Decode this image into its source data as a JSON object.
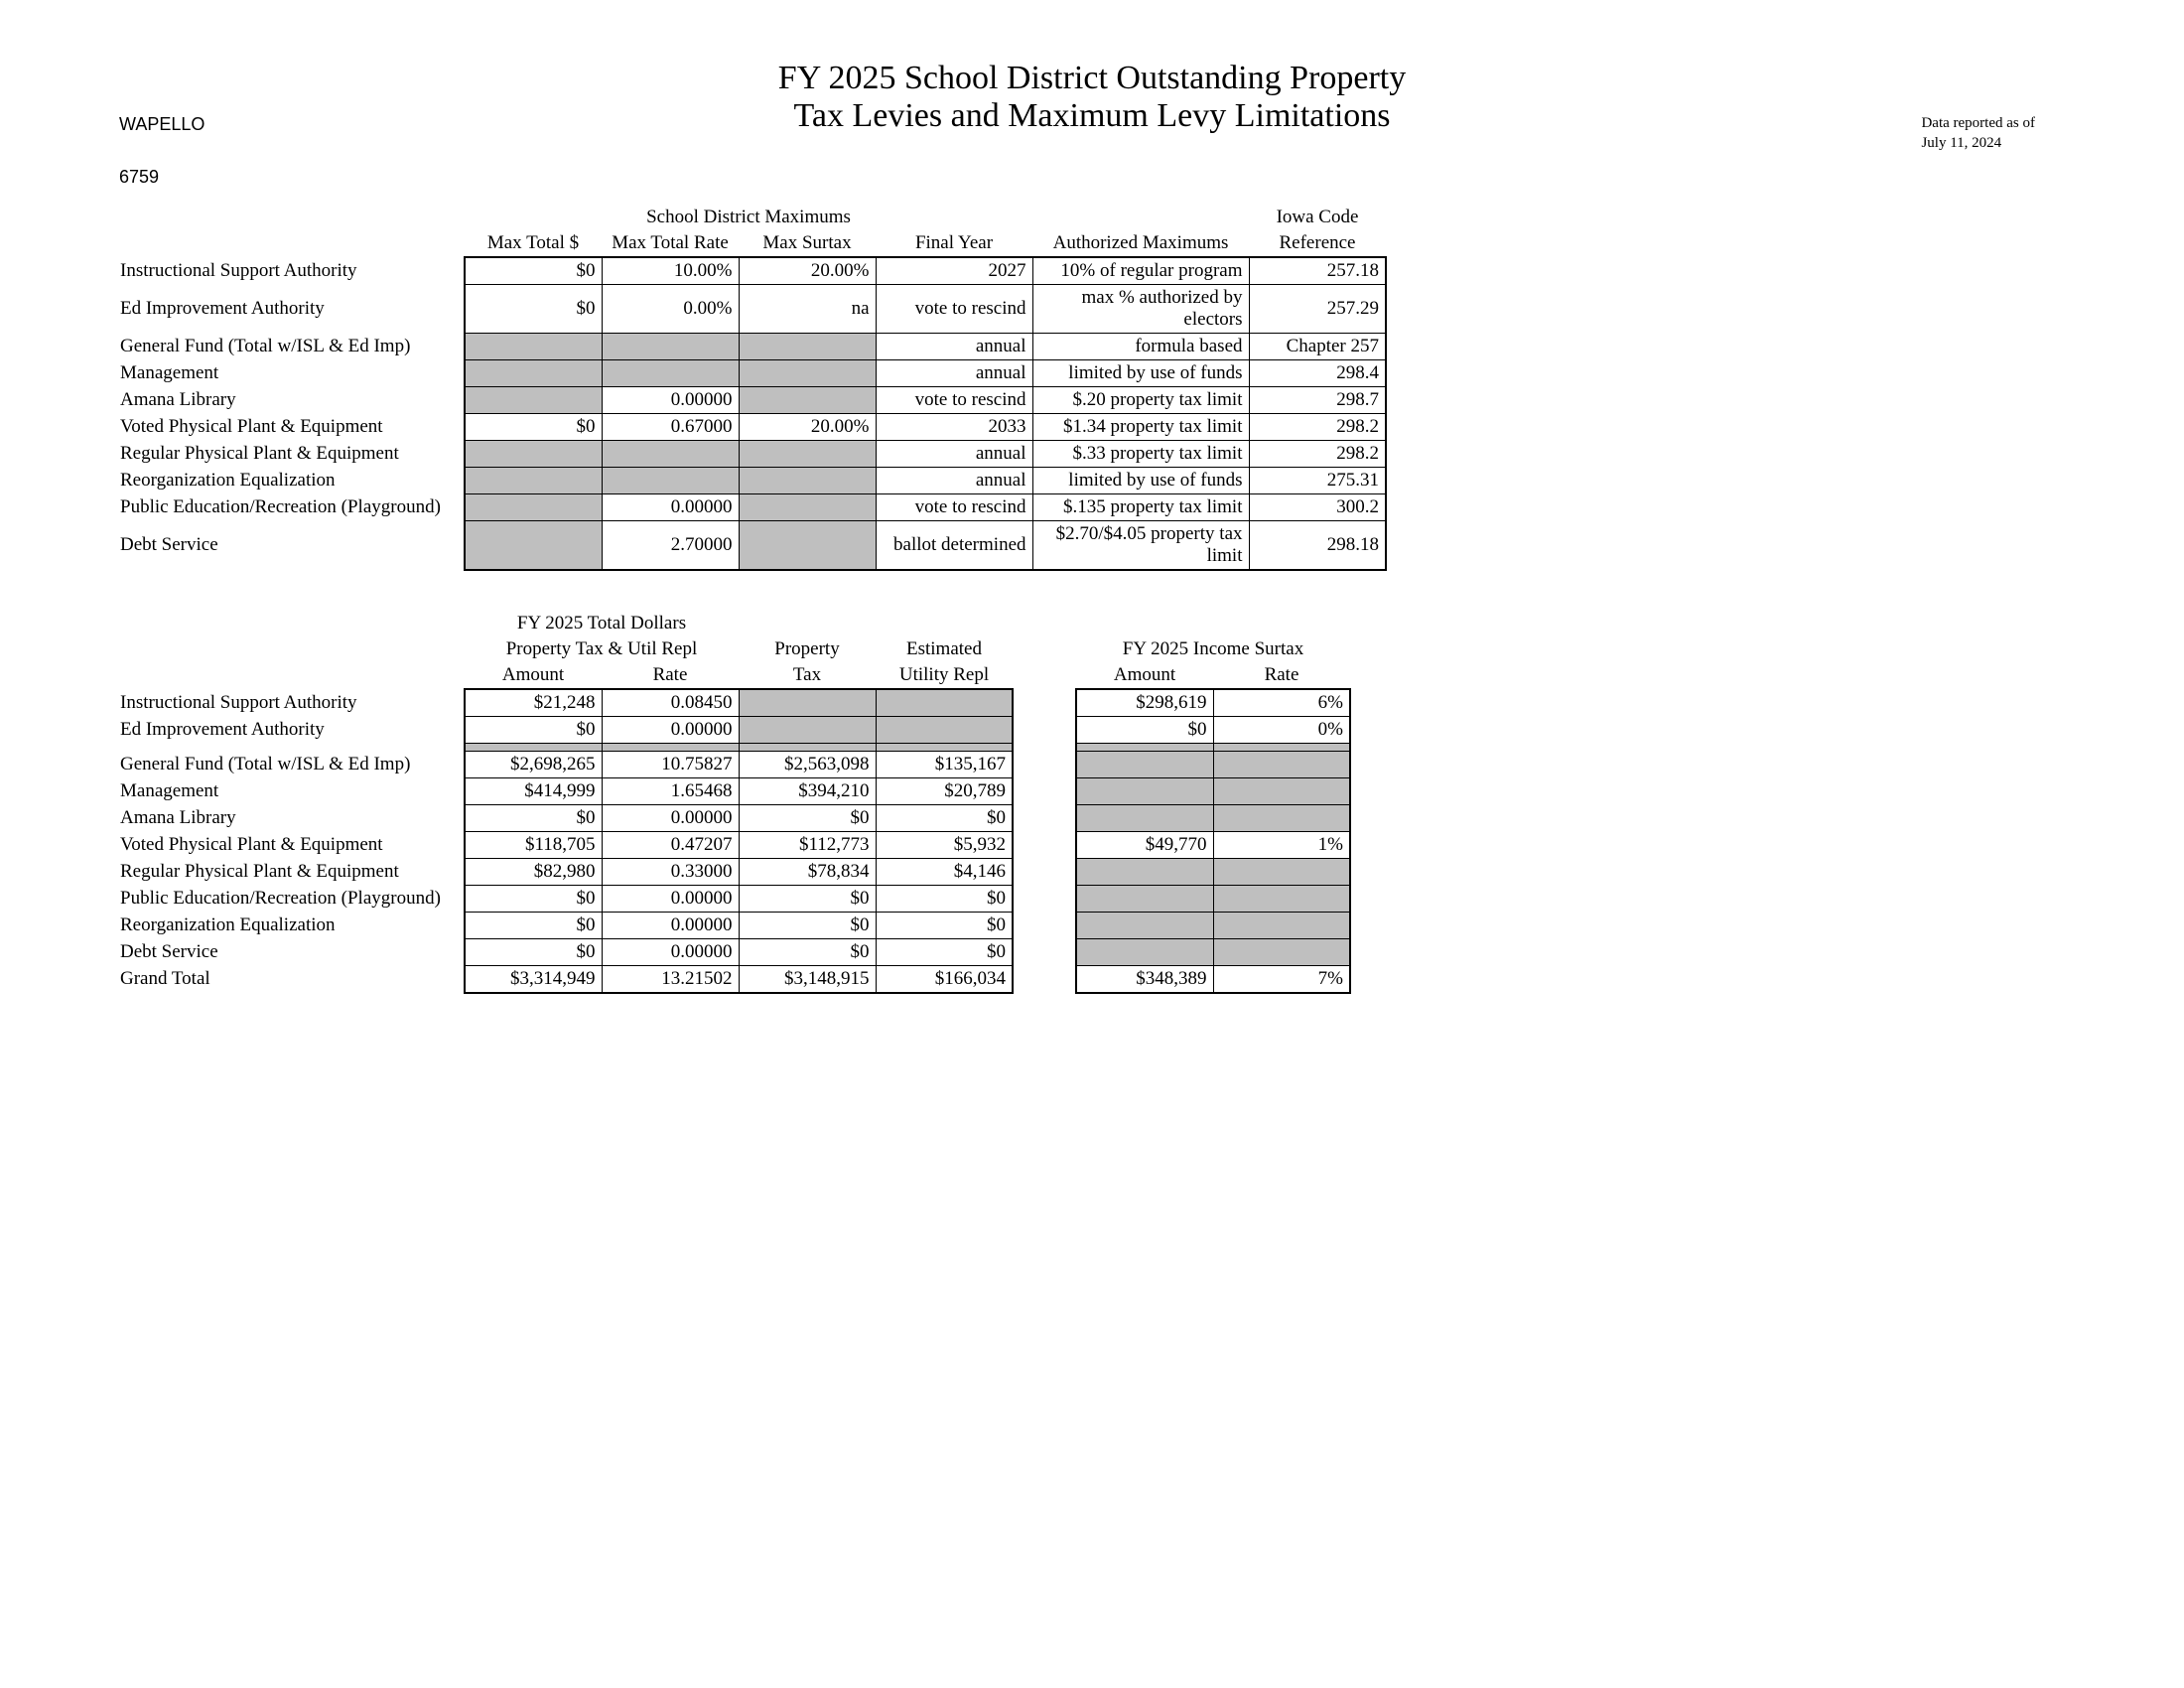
{
  "header": {
    "district_name": "WAPELLO",
    "district_code": "6759",
    "title_line1": "FY 2025 School District Outstanding Property",
    "title_line2": "Tax Levies and Maximum Levy Limitations",
    "report_date_l1": "Data reported as of",
    "report_date_l2": "July 11, 2024"
  },
  "table1": {
    "super_header": "School District Maximums",
    "iowa_code_super": "Iowa Code",
    "cols": {
      "c1": "Max Total $",
      "c2": "Max Total Rate",
      "c3": "Max Surtax",
      "c4": "Final Year",
      "c5": "Authorized Maximums",
      "c6": "Reference"
    },
    "rows": [
      {
        "label": "Instructional Support Authority",
        "c1": "$0",
        "c2": "10.00%",
        "c3": "20.00%",
        "c4": "2027",
        "c5": "10% of regular program",
        "c6": "257.18",
        "grey": []
      },
      {
        "label": "Ed Improvement Authority",
        "c1": "$0",
        "c2": "0.00%",
        "c3": "na",
        "c4": "vote to rescind",
        "c5": "max % authorized by electors",
        "c6": "257.29",
        "grey": []
      },
      {
        "label": "General Fund (Total w/ISL & Ed Imp)",
        "c1": "",
        "c2": "",
        "c3": "",
        "c4": "annual",
        "c5": "formula based",
        "c6": "Chapter 257",
        "grey": [
          "c1",
          "c2",
          "c3"
        ]
      },
      {
        "label": "Management",
        "c1": "",
        "c2": "",
        "c3": "",
        "c4": "annual",
        "c5": "limited by use of funds",
        "c6": "298.4",
        "grey": [
          "c1",
          "c2",
          "c3"
        ]
      },
      {
        "label": "Amana Library",
        "c1": "",
        "c2": "0.00000",
        "c3": "",
        "c4": "vote to rescind",
        "c5": "$.20 property tax limit",
        "c6": "298.7",
        "grey": [
          "c1",
          "c3"
        ]
      },
      {
        "label": "Voted Physical Plant & Equipment",
        "c1": "$0",
        "c2": "0.67000",
        "c3": "20.00%",
        "c4": "2033",
        "c5": "$1.34 property tax  limit",
        "c6": "298.2",
        "grey": []
      },
      {
        "label": "Regular Physical Plant & Equipment",
        "c1": "",
        "c2": "",
        "c3": "",
        "c4": "annual",
        "c5": "$.33 property tax  limit",
        "c6": "298.2",
        "grey": [
          "c1",
          "c2",
          "c3"
        ]
      },
      {
        "label": "Reorganization Equalization",
        "c1": "",
        "c2": "",
        "c3": "",
        "c4": "annual",
        "c5": "limited by use of funds",
        "c6": "275.31",
        "grey": [
          "c1",
          "c2",
          "c3"
        ]
      },
      {
        "label": "Public Education/Recreation (Playground)",
        "c1": "",
        "c2": "0.00000",
        "c3": "",
        "c4": "vote to rescind",
        "c5": "$.135 property tax  limit",
        "c6": "300.2",
        "grey": [
          "c1",
          "c3"
        ]
      },
      {
        "label": "Debt Service",
        "c1": "",
        "c2": "2.70000",
        "c3": "",
        "c4": "ballot determined",
        "c5": "$2.70/$4.05 property tax  limit",
        "c6": "298.18",
        "grey": [
          "c1",
          "c3"
        ]
      }
    ]
  },
  "table2": {
    "super1": "FY 2025 Total Dollars",
    "super2": "Property Tax & Util Repl",
    "super_prop": "Property",
    "super_est": "Estimated",
    "super_surtax": "FY 2025 Income Surtax",
    "cols": {
      "c1": "Amount",
      "c2": "Rate",
      "c3": "Tax",
      "c4": "Utility Repl",
      "c5": "Amount",
      "c6": "Rate"
    },
    "rows": [
      {
        "label": "Instructional Support Authority",
        "c1": "$21,248",
        "c2": "0.08450",
        "c3": "",
        "c4": "",
        "c5": "$298,619",
        "c6": "6%",
        "grey34": true,
        "surtax_grey": false
      },
      {
        "label": "Ed Improvement Authority",
        "c1": "$0",
        "c2": "0.00000",
        "c3": "",
        "c4": "",
        "c5": "$0",
        "c6": "0%",
        "grey34": true,
        "surtax_grey": false
      },
      {
        "label": "",
        "spacer": true
      },
      {
        "label": "General Fund (Total w/ISL & Ed Imp)",
        "c1": "$2,698,265",
        "c2": "10.75827",
        "c3": "$2,563,098",
        "c4": "$135,167",
        "c5": "",
        "c6": "",
        "grey34": false,
        "surtax_grey": true
      },
      {
        "label": "Management",
        "c1": "$414,999",
        "c2": "1.65468",
        "c3": "$394,210",
        "c4": "$20,789",
        "c5": "",
        "c6": "",
        "grey34": false,
        "surtax_grey": true
      },
      {
        "label": "Amana Library",
        "c1": "$0",
        "c2": "0.00000",
        "c3": "$0",
        "c4": "$0",
        "c5": "",
        "c6": "",
        "grey34": false,
        "surtax_grey": true
      },
      {
        "label": "Voted Physical Plant & Equipment",
        "c1": "$118,705",
        "c2": "0.47207",
        "c3": "$112,773",
        "c4": "$5,932",
        "c5": "$49,770",
        "c6": "1%",
        "grey34": false,
        "surtax_grey": false
      },
      {
        "label": "Regular Physical Plant & Equipment",
        "c1": "$82,980",
        "c2": "0.33000",
        "c3": "$78,834",
        "c4": "$4,146",
        "c5": "",
        "c6": "",
        "grey34": false,
        "surtax_grey": true
      },
      {
        "label": "Public Education/Recreation (Playground)",
        "c1": "$0",
        "c2": "0.00000",
        "c3": "$0",
        "c4": "$0",
        "c5": "",
        "c6": "",
        "grey34": false,
        "surtax_grey": true
      },
      {
        "label": "Reorganization Equalization",
        "c1": "$0",
        "c2": "0.00000",
        "c3": "$0",
        "c4": "$0",
        "c5": "",
        "c6": "",
        "grey34": false,
        "surtax_grey": true
      },
      {
        "label": "Debt Service",
        "c1": "$0",
        "c2": "0.00000",
        "c3": "$0",
        "c4": "$0",
        "c5": "",
        "c6": "",
        "grey34": false,
        "surtax_grey": true
      },
      {
        "label": "Grand Total",
        "c1": "$3,314,949",
        "c2": "13.21502",
        "c3": "$3,148,915",
        "c4": "$166,034",
        "c5": "$348,389",
        "c6": "7%",
        "grey34": false,
        "surtax_grey": false,
        "total": true
      }
    ]
  }
}
